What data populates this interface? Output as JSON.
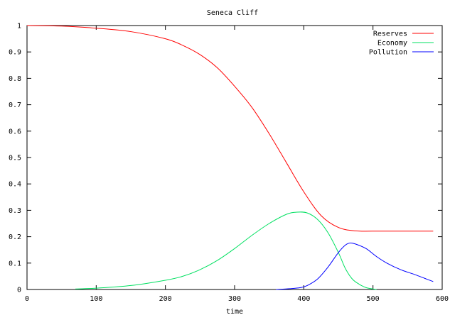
{
  "chart_data": {
    "type": "line",
    "title": "Seneca Cliff",
    "xlabel": "time",
    "ylabel": "",
    "xlim": [
      0,
      600
    ],
    "ylim": [
      0,
      1
    ],
    "x_ticks": [
      "0",
      "100",
      "200",
      "300",
      "400",
      "500",
      "600"
    ],
    "y_ticks": [
      "0",
      "0.1",
      "0.2",
      "0.3",
      "0.4",
      "0.5",
      "0.6",
      "0.7",
      "0.8",
      "0.9",
      "1"
    ],
    "grid": false,
    "legend_position": "top-right",
    "series": [
      {
        "name": "Reserves",
        "color": "#ff0000",
        "points": [
          [
            0,
            1.0
          ],
          [
            50,
            0.998
          ],
          [
            100,
            0.99
          ],
          [
            150,
            0.977
          ],
          [
            200,
            0.95
          ],
          [
            225,
            0.925
          ],
          [
            250,
            0.89
          ],
          [
            275,
            0.84
          ],
          [
            300,
            0.77
          ],
          [
            325,
            0.69
          ],
          [
            350,
            0.59
          ],
          [
            375,
            0.48
          ],
          [
            400,
            0.37
          ],
          [
            425,
            0.28
          ],
          [
            450,
            0.235
          ],
          [
            475,
            0.222
          ],
          [
            500,
            0.221
          ],
          [
            550,
            0.221
          ],
          [
            587,
            0.221
          ]
        ]
      },
      {
        "name": "Economy",
        "color": "#00e060",
        "points": [
          [
            70,
            0.002
          ],
          [
            100,
            0.005
          ],
          [
            150,
            0.015
          ],
          [
            200,
            0.035
          ],
          [
            225,
            0.05
          ],
          [
            250,
            0.075
          ],
          [
            275,
            0.11
          ],
          [
            300,
            0.155
          ],
          [
            325,
            0.205
          ],
          [
            350,
            0.25
          ],
          [
            375,
            0.285
          ],
          [
            390,
            0.293
          ],
          [
            405,
            0.29
          ],
          [
            420,
            0.265
          ],
          [
            435,
            0.215
          ],
          [
            450,
            0.14
          ],
          [
            460,
            0.08
          ],
          [
            470,
            0.04
          ],
          [
            480,
            0.02
          ],
          [
            490,
            0.007
          ],
          [
            500,
            0.002
          ],
          [
            505,
            0.0
          ]
        ]
      },
      {
        "name": "Pollution",
        "color": "#0000ff",
        "points": [
          [
            360,
            0.0
          ],
          [
            380,
            0.003
          ],
          [
            395,
            0.007
          ],
          [
            405,
            0.015
          ],
          [
            420,
            0.04
          ],
          [
            435,
            0.085
          ],
          [
            450,
            0.14
          ],
          [
            460,
            0.168
          ],
          [
            467,
            0.176
          ],
          [
            475,
            0.172
          ],
          [
            490,
            0.155
          ],
          [
            505,
            0.125
          ],
          [
            520,
            0.1
          ],
          [
            540,
            0.075
          ],
          [
            560,
            0.057
          ],
          [
            575,
            0.042
          ],
          [
            587,
            0.03
          ]
        ]
      }
    ]
  }
}
